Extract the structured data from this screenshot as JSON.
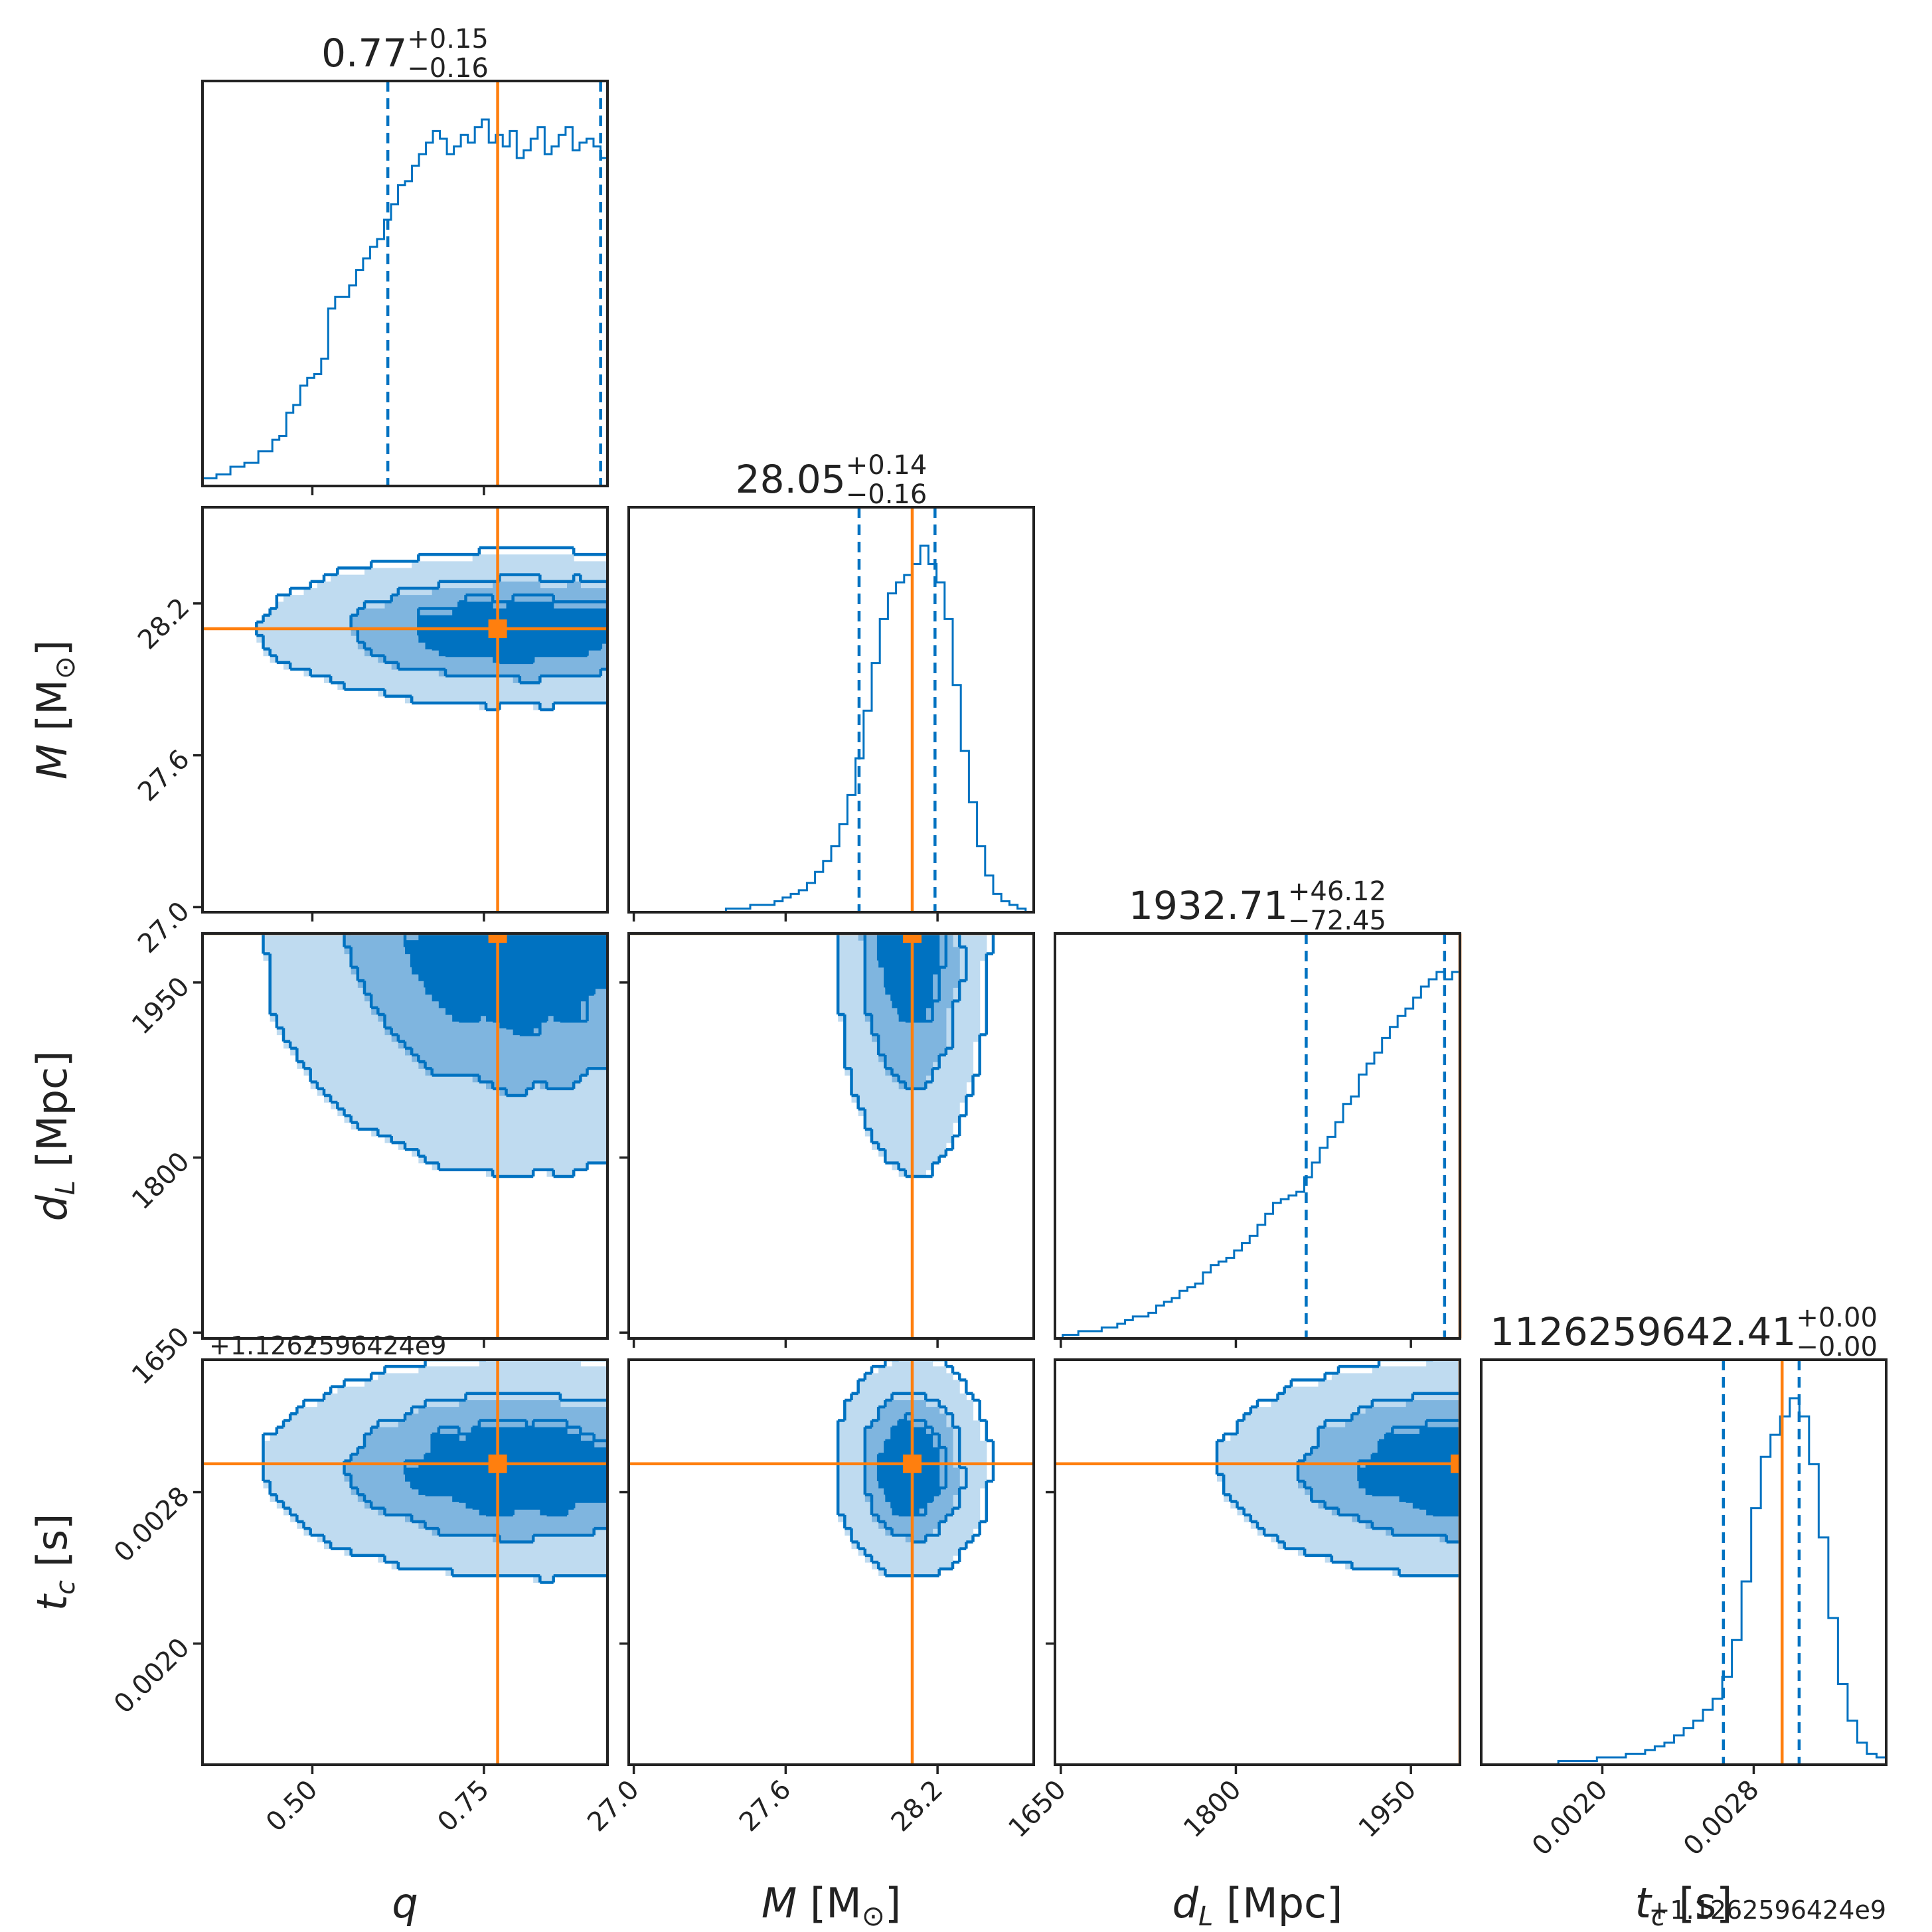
{
  "colors": {
    "accent": "#0072c1",
    "truth": "#ff7f0e",
    "fill_outer": "#bfdbf0",
    "fill_mid": "#7fb5df",
    "fill_inner": "#0072c1"
  },
  "chart_data": {
    "type": "corner",
    "parameters": [
      {
        "key": "q",
        "label": "q",
        "range": [
          0.34,
          0.93
        ],
        "ticks": [
          0.5,
          0.75
        ],
        "tick_labels": [
          "0.50",
          "0.75"
        ],
        "truth": 0.77,
        "title": {
          "value": "0.77",
          "plus": "+0.15",
          "minus": "−0.16"
        },
        "quantiles": [
          0.61,
          0.92
        ],
        "hist": [
          2,
          2,
          3,
          3,
          5,
          5,
          6,
          6,
          9,
          9,
          12,
          13,
          19,
          21,
          26,
          28,
          29,
          33,
          46,
          49,
          49,
          52,
          56,
          59,
          62,
          64,
          69,
          73,
          78,
          79,
          83,
          86,
          89,
          92,
          90,
          86,
          88,
          91,
          89,
          93,
          95,
          89,
          91,
          88,
          92,
          85,
          87,
          90,
          93,
          86,
          88,
          91,
          93,
          87,
          89,
          90,
          88,
          85
        ]
      },
      {
        "key": "M",
        "label_main": "M",
        "label_rest": " [M",
        "label_sub": "⊙",
        "label_end": "]",
        "range": [
          26.98,
          28.58
        ],
        "ticks": [
          27.0,
          27.6,
          28.2
        ],
        "tick_labels": [
          "27.0",
          "27.6",
          "28.2"
        ],
        "truth": 28.1,
        "title": {
          "value": "28.05",
          "plus": "+0.14",
          "minus": "−0.16"
        },
        "quantiles": [
          27.89,
          28.19
        ],
        "hist": [
          0,
          0,
          0,
          0,
          0,
          0,
          0,
          0,
          0,
          0,
          0,
          0,
          1,
          1,
          1,
          2,
          2,
          2,
          3,
          4,
          5,
          6,
          8,
          11,
          14,
          18,
          24,
          32,
          42,
          55,
          68,
          80,
          87,
          90,
          92,
          95,
          100,
          95,
          90,
          80,
          62,
          44,
          30,
          18,
          10,
          5,
          3,
          2,
          1,
          0
        ]
      },
      {
        "key": "dL",
        "label_main": "d",
        "label_sub": "L",
        "label_rest": " [Mpc]",
        "range": [
          1645,
          1992
        ],
        "ticks": [
          1650,
          1800,
          1950
        ],
        "tick_labels": [
          "1650",
          "1800",
          "1950"
        ],
        "truth": 1992,
        "title": {
          "value": "1932.71",
          "plus": "+46.12",
          "minus": "−72.45"
        },
        "quantiles": [
          1860.26,
          1978.83
        ],
        "hist": [
          0,
          1,
          1,
          2,
          2,
          2,
          3,
          3,
          4,
          5,
          6,
          6,
          7,
          9,
          10,
          11,
          13,
          14,
          15,
          18,
          20,
          21,
          22,
          24,
          26,
          28,
          31,
          34,
          37,
          38,
          39,
          40,
          44,
          48,
          52,
          55,
          59,
          64,
          66,
          72,
          75,
          78,
          82,
          85,
          88,
          90,
          93,
          96,
          98,
          100,
          98,
          100
        ]
      },
      {
        "key": "tc",
        "label_main": "t",
        "label_sub": "c",
        "label_rest": " [s]",
        "range": [
          0.00136,
          0.0035
        ],
        "ticks": [
          0.002,
          0.0028
        ],
        "tick_labels": [
          "0.0020",
          "0.0028"
        ],
        "truth": 0.00295,
        "title": {
          "value": "1126259642.41",
          "plus": "+0.00",
          "minus": "−0.00"
        },
        "quantiles": [
          0.00264,
          0.00304
        ],
        "offset_text": "+1.1262596424e9",
        "hist": [
          0,
          0,
          0,
          0,
          0,
          0,
          0,
          0,
          1,
          1,
          1,
          1,
          2,
          2,
          2,
          3,
          3,
          4,
          5,
          6,
          8,
          10,
          12,
          15,
          18,
          24,
          34,
          50,
          70,
          84,
          90,
          95,
          100,
          95,
          82,
          62,
          40,
          22,
          12,
          6,
          3,
          2
        ]
      }
    ],
    "pairs_shown": "lower triangle: 2D density with 3 filled contour levels, truth crosshair with square marker",
    "density_params": {
      "q": {
        "mu": 0.8,
        "sd": 0.16,
        "lo": 0.4
      },
      "M": {
        "mu": 28.09,
        "sd": 0.13
      },
      "dL": {
        "mu": 1995,
        "sd": 90
      },
      "tc": {
        "mu": 0.00292,
        "sd": 0.00025
      }
    }
  }
}
